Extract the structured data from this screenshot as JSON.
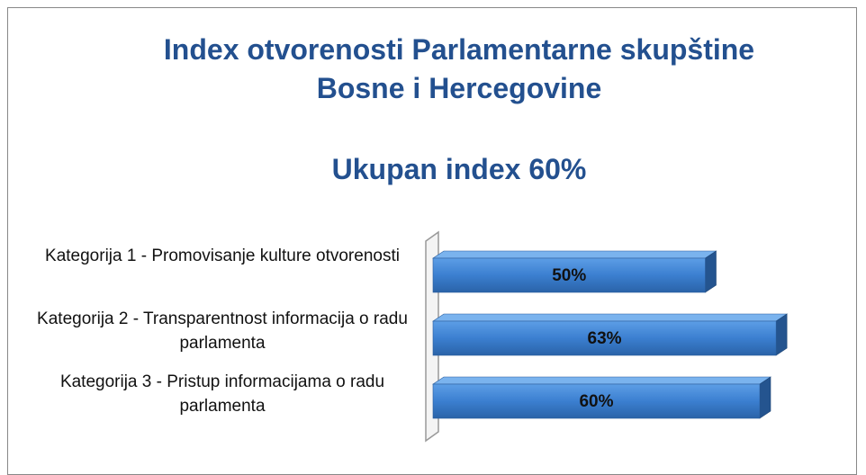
{
  "chart_data": {
    "type": "bar3d-horizontal",
    "title": "Index otvorenosti Parlamentarne skupštine Bosne i Hercegovine",
    "subtitle": "Ukupan index 60%",
    "categories": [
      "Kategorija 1 - Promovisanje kulture otvorenosti",
      "Kategorija 2 - Transparentnost informacija o radu parlamenta",
      "Kategorija 3 - Pristup informacijama o radu parlamenta"
    ],
    "values": [
      50,
      63,
      60
    ],
    "value_labels": [
      "50%",
      "63%",
      "60%"
    ],
    "color": "#3b7fd0"
  }
}
